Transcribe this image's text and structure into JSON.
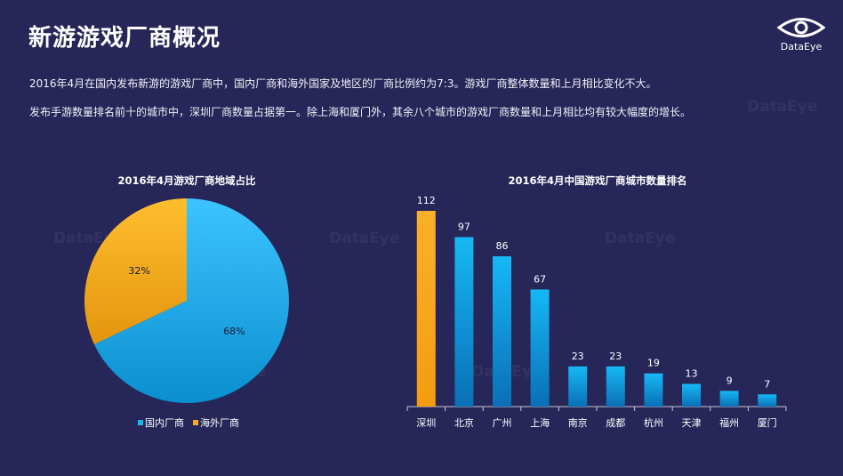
{
  "header": {
    "title": "新游游戏厂商概况",
    "logo_text": "DataEye"
  },
  "paragraphs": [
    "2016年4月在国内发布新游的游戏厂商中，国内厂商和海外国家及地区的厂商比例约为7:3。游戏厂商整体数量和上月相比变化不大。",
    "发布手游数量排名前十的城市中，深圳厂商数量占据第一。除上海和厦门外，其余八个城市的游戏厂商数量和上月相比均有较大幅度的增长。"
  ],
  "watermark": "DataEye",
  "colors": {
    "background": "#262659",
    "blue": "#1fb3f0",
    "orange": "#f9aa24"
  },
  "chart_data": [
    {
      "type": "pie",
      "title": "2016年4月游戏厂商地域占比",
      "slices": [
        {
          "name": "国内厂商",
          "value": 68,
          "label": "68%",
          "color": "#1fb3f0"
        },
        {
          "name": "海外厂商",
          "value": 32,
          "label": "32%",
          "color": "#f9aa24"
        }
      ],
      "legend_position": "bottom"
    },
    {
      "type": "bar",
      "title": "2016年4月中国游戏厂商城市数量排名",
      "categories": [
        "深圳",
        "北京",
        "广州",
        "上海",
        "南京",
        "成都",
        "杭州",
        "天津",
        "福州",
        "厦门"
      ],
      "values": [
        112,
        97,
        86,
        67,
        23,
        23,
        19,
        13,
        9,
        7
      ],
      "highlight_index": 0,
      "ylim": [
        0,
        112
      ],
      "grid": false
    }
  ]
}
